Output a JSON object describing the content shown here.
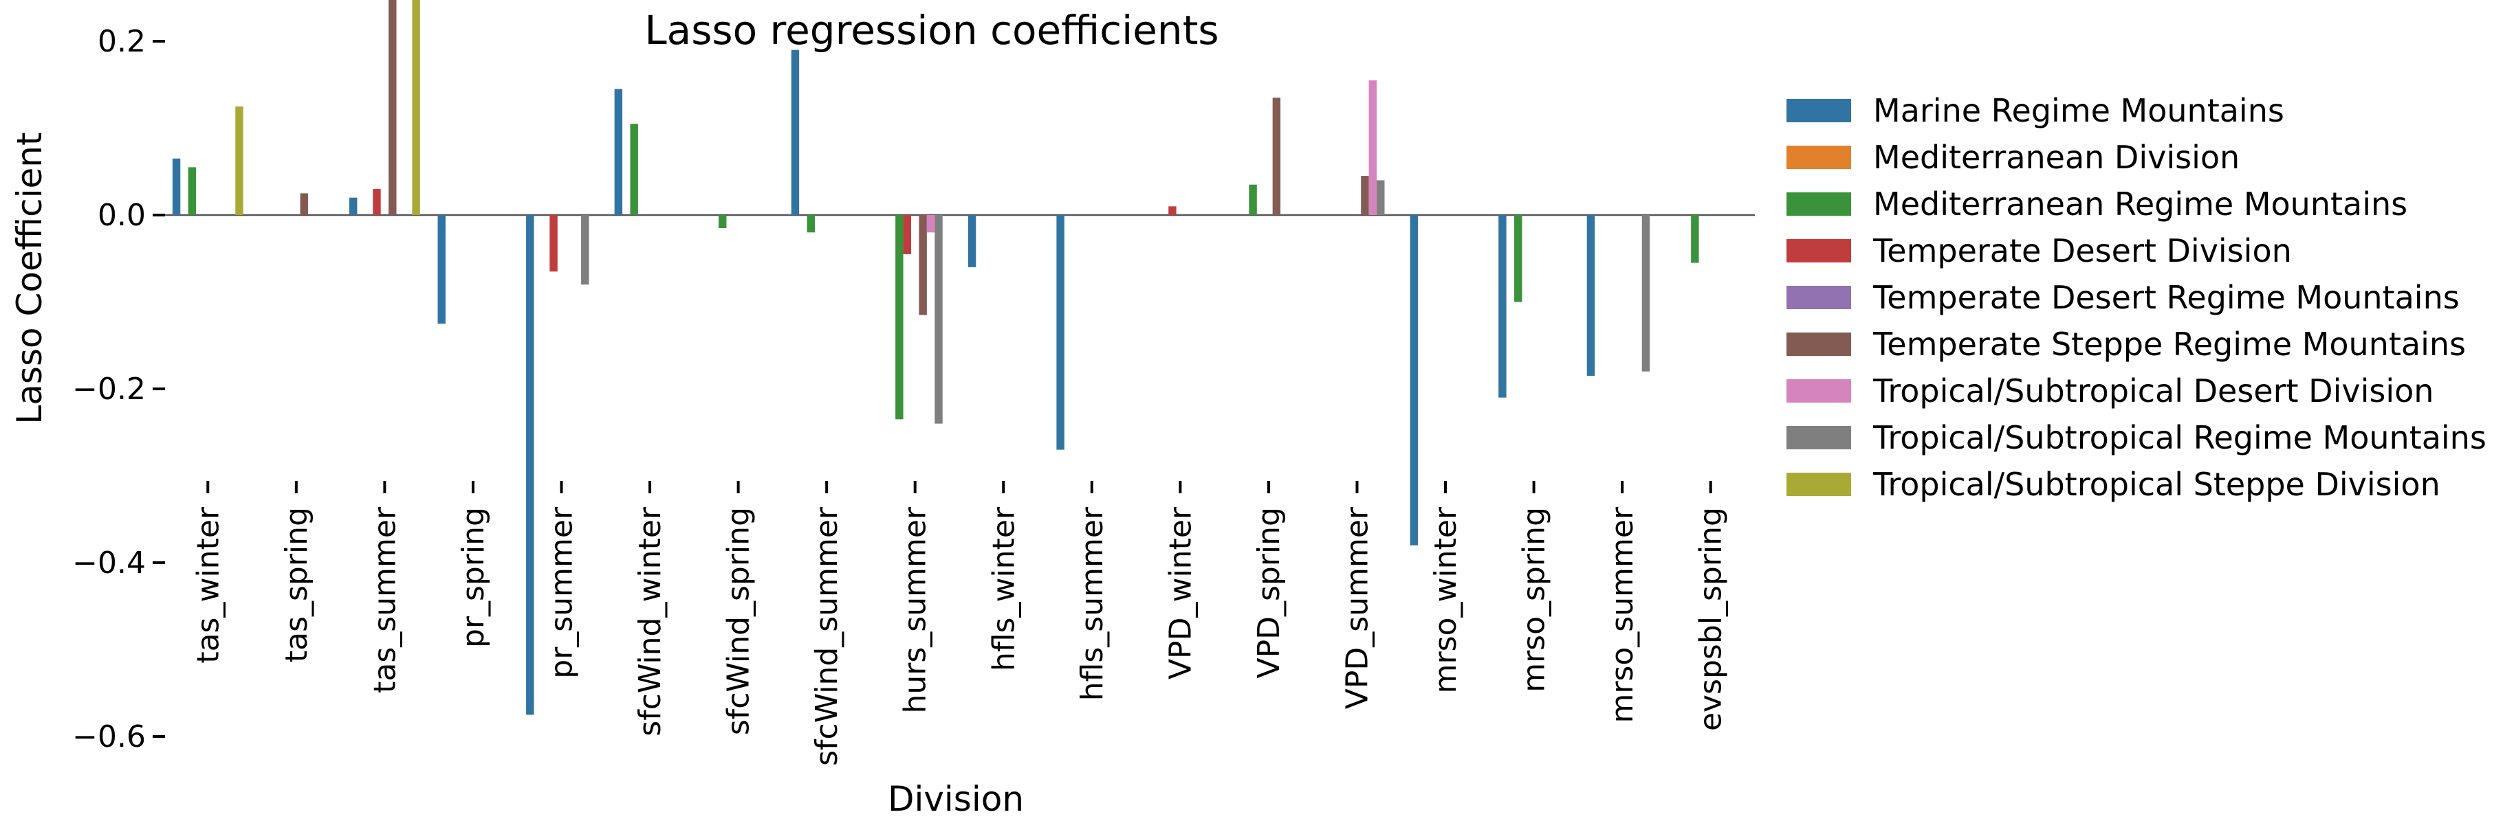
{
  "chart_data": {
    "type": "bar",
    "title": "Lasso regression coefficients",
    "xlabel": "Division",
    "ylabel": "Lasso Coefficient",
    "ylim": [
      -0.62,
      0.31
    ],
    "yticks": [
      -0.6,
      -0.4,
      -0.2,
      0.0,
      0.2
    ],
    "ytick_labels": [
      "−0.6",
      "−0.4",
      "−0.2",
      "0.0",
      "0.2"
    ],
    "grid": false,
    "zero_line": true,
    "legend_position": "right",
    "categories": [
      "tas_winter",
      "tas_spring",
      "tas_summer",
      "pr_spring",
      "pr_summer",
      "sfcWind_winter",
      "sfcWind_spring",
      "sfcWind_summer",
      "hurs_summer",
      "hfls_winter",
      "hfls_summer",
      "VPD_winter",
      "VPD_spring",
      "VPD_summer",
      "mrso_winter",
      "mrso_spring",
      "mrso_summer",
      "evspsbl_spring"
    ],
    "series": [
      {
        "name": "Marine Regime Mountains",
        "color": "#3274a1",
        "values": [
          0.065,
          0,
          0.02,
          -0.125,
          -0.575,
          0.145,
          0,
          0.19,
          0,
          -0.06,
          -0.27,
          0,
          0,
          0,
          -0.38,
          -0.21,
          -0.185,
          0
        ]
      },
      {
        "name": "Mediterranean Division",
        "color": "#e1812c",
        "values": [
          0,
          0,
          0,
          0,
          0,
          0,
          0,
          0,
          0,
          0,
          0,
          0,
          0,
          0,
          0,
          0,
          0,
          0
        ]
      },
      {
        "name": "Mediterranean Regime Mountains",
        "color": "#3a923a",
        "values": [
          0.055,
          0,
          0,
          0,
          0,
          0.105,
          -0.015,
          -0.02,
          -0.235,
          0,
          0,
          0,
          0.035,
          0,
          0,
          -0.1,
          0,
          -0.055
        ]
      },
      {
        "name": "Temperate Desert Division",
        "color": "#c03d3e",
        "values": [
          0,
          0,
          0.03,
          0,
          -0.065,
          0,
          0,
          0,
          -0.045,
          0,
          0,
          0.01,
          0,
          0,
          0,
          0,
          0,
          0
        ]
      },
      {
        "name": "Temperate Desert Regime Mountains",
        "color": "#9372b2",
        "values": [
          0,
          0,
          0,
          0,
          0,
          0,
          0,
          0,
          0,
          0,
          0,
          0,
          0,
          0,
          0,
          0,
          0,
          0
        ]
      },
      {
        "name": "Temperate Steppe Regime Mountains",
        "color": "#845b53",
        "values": [
          0,
          0.025,
          0.295,
          0,
          0,
          0,
          0,
          0,
          -0.115,
          0,
          0,
          0,
          0.135,
          0.045,
          0,
          0,
          0,
          0
        ]
      },
      {
        "name": "Tropical/Subtropical Desert Division",
        "color": "#d684bd",
        "values": [
          0,
          0,
          0,
          0,
          0,
          0,
          0,
          0,
          -0.02,
          0,
          0,
          0,
          0,
          0.155,
          0,
          0,
          0,
          0
        ]
      },
      {
        "name": "Tropical/Subtropical Regime Mountains",
        "color": "#7f7f7f",
        "values": [
          0,
          0,
          0,
          0,
          -0.08,
          0,
          0,
          0,
          -0.24,
          0,
          0,
          0,
          0,
          0.04,
          0,
          0,
          -0.18,
          0
        ]
      },
      {
        "name": "Tropical/Subtropical Steppe Division",
        "color": "#a9aa35",
        "values": [
          0.125,
          0,
          0.275,
          0,
          0,
          0,
          0,
          0,
          0,
          0,
          0,
          0,
          0,
          0,
          0,
          0,
          0,
          0
        ]
      }
    ]
  }
}
